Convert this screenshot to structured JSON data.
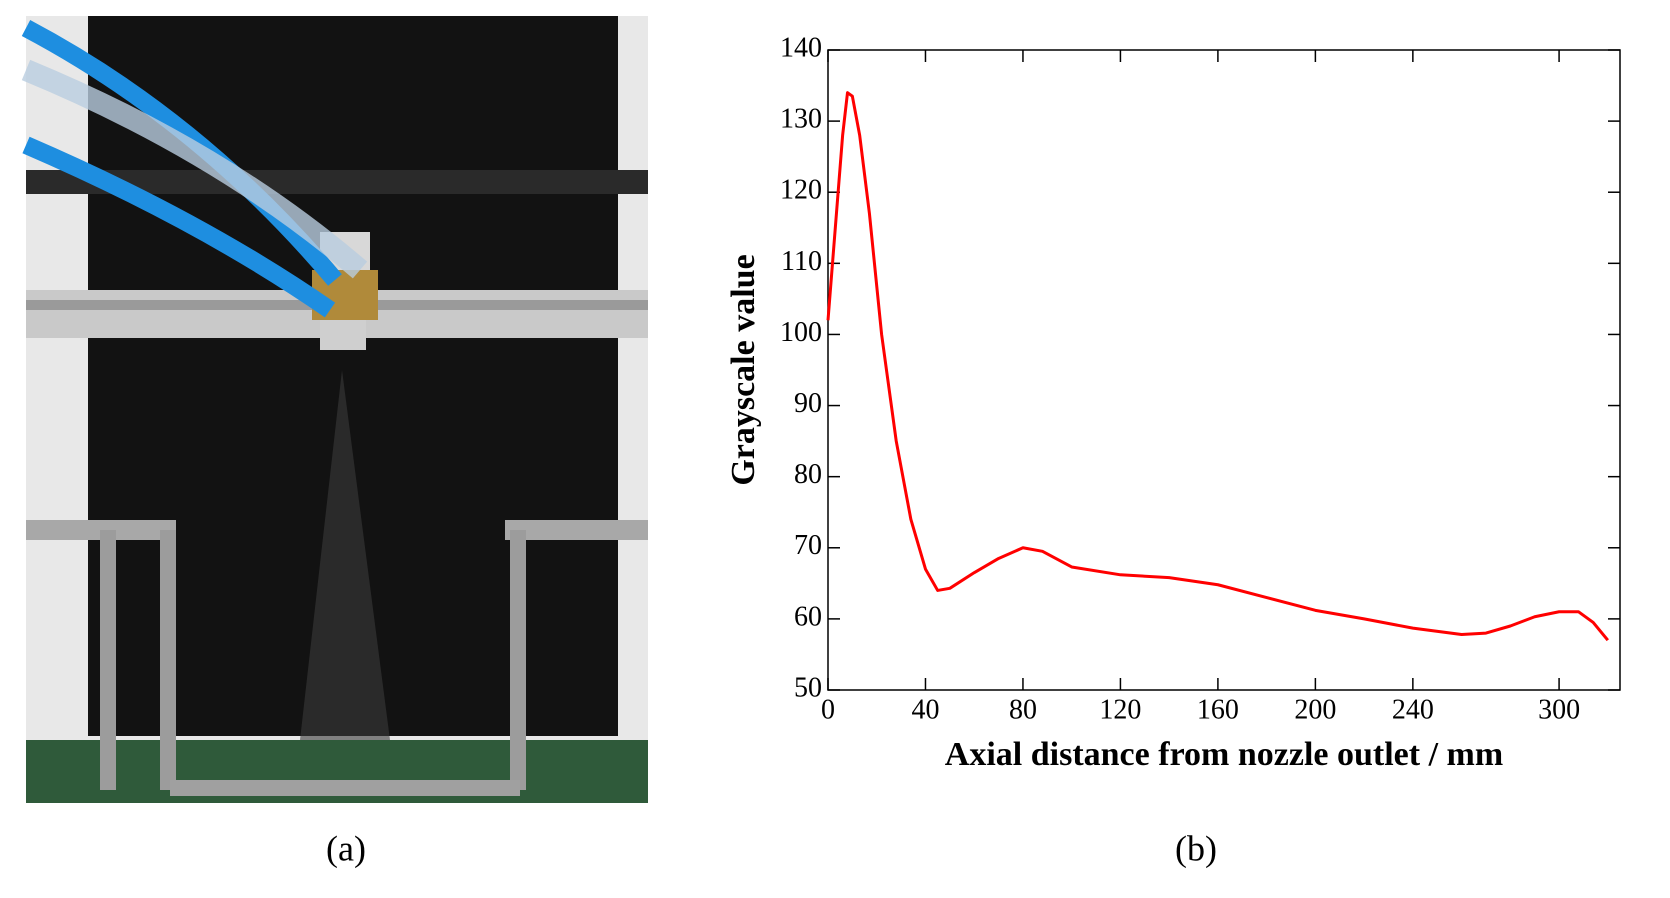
{
  "panel_labels": [
    "(a)",
    "(b)"
  ],
  "chart_data": {
    "type": "line",
    "xlabel": "Axial distance from nozzle outlet / mm",
    "ylabel": "Grayscale value",
    "x": [
      0,
      3,
      6,
      8,
      10,
      13,
      17,
      22,
      28,
      34,
      40,
      45,
      50,
      60,
      70,
      80,
      88,
      100,
      120,
      140,
      160,
      180,
      200,
      220,
      240,
      260,
      270,
      280,
      290,
      300,
      308,
      314,
      320
    ],
    "values": [
      102,
      115,
      128,
      134,
      133.5,
      128,
      117,
      100,
      85,
      74,
      67,
      64,
      64.3,
      66.5,
      68.5,
      70,
      69.5,
      67.3,
      66.2,
      65.8,
      64.8,
      63,
      61.2,
      60,
      58.7,
      57.8,
      58,
      59,
      60.3,
      61,
      61,
      59.5,
      57
    ],
    "color": "#ff0000",
    "xlim": [
      0,
      325
    ],
    "ylim": [
      50,
      140
    ],
    "xticks": [
      0,
      40,
      80,
      120,
      160,
      200,
      240,
      300
    ],
    "yticks": [
      50,
      60,
      70,
      80,
      90,
      100,
      110,
      120,
      130,
      140
    ],
    "grid": false
  }
}
